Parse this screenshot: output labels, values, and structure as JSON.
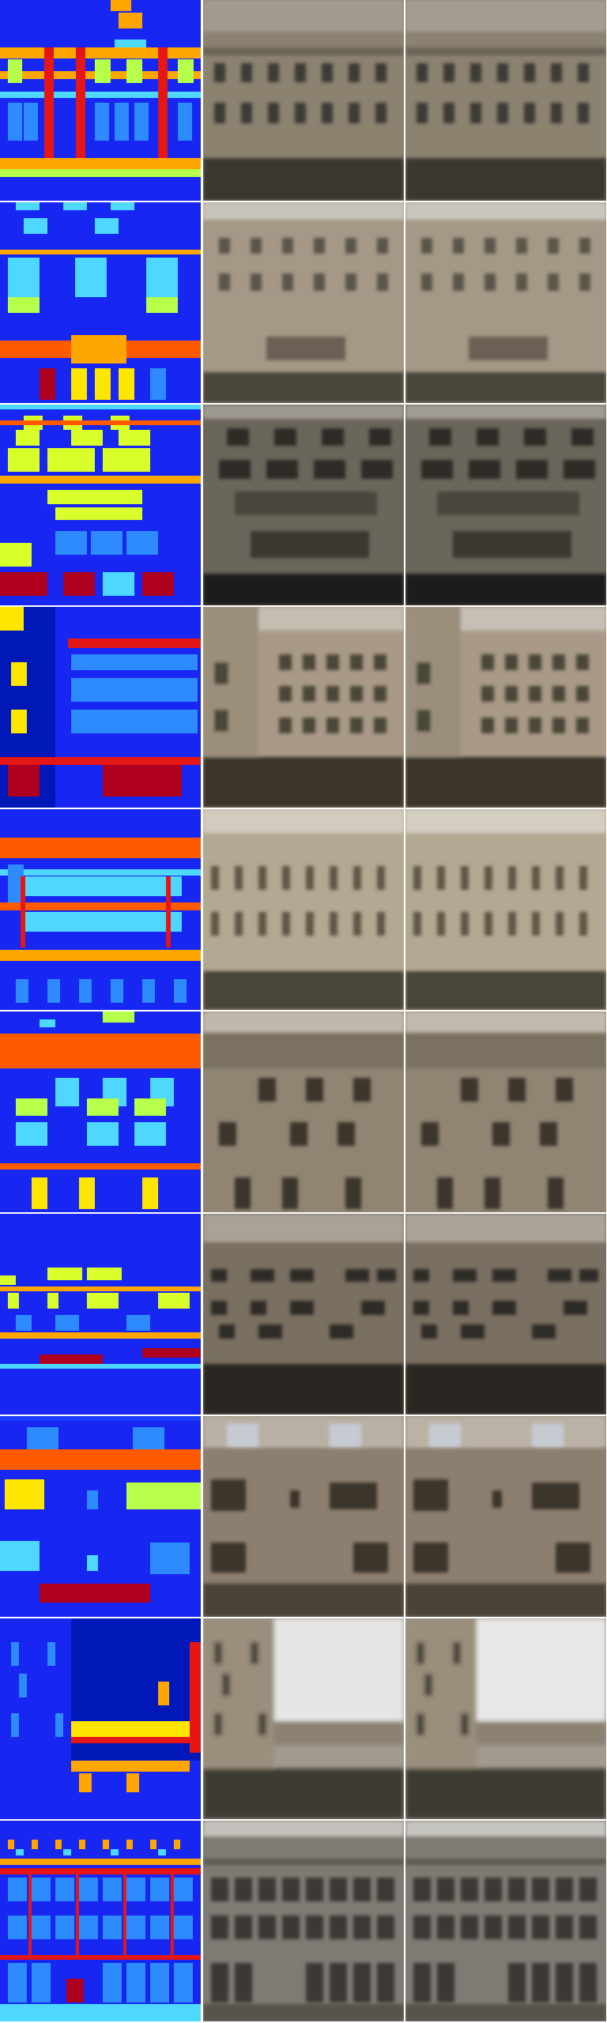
{
  "figure": {
    "description_columns": [
      "label-map",
      "generated-a",
      "generated-b"
    ],
    "rows": [
      {
        "id": "row-1",
        "label_palette": [
          "#1726f0",
          "#e51616",
          "#ffa600",
          "#b6ff4a",
          "#4fd8ff",
          "#2e8bff"
        ],
        "photo_tone": "#8b8270"
      },
      {
        "id": "row-2",
        "label_palette": [
          "#1726f0",
          "#ff5a00",
          "#ffa600",
          "#b6ff4a",
          "#4fd8ff",
          "#b00020"
        ],
        "photo_tone": "#a49986"
      },
      {
        "id": "row-3",
        "label_palette": [
          "#1726f0",
          "#ff5a00",
          "#d8ff2a",
          "#2e8bff",
          "#4fd8ff",
          "#b00020"
        ],
        "photo_tone": "#6b665c"
      },
      {
        "id": "row-4",
        "label_palette": [
          "#1726f0",
          "#e51616",
          "#ffe600",
          "#2e8bff",
          "#0018b8"
        ],
        "photo_tone": "#a89a86"
      },
      {
        "id": "row-5",
        "label_palette": [
          "#1726f0",
          "#ff5a00",
          "#4fd8ff",
          "#b6ff4a",
          "#e51616"
        ],
        "photo_tone": "#b3a892"
      },
      {
        "id": "row-6",
        "label_palette": [
          "#1726f0",
          "#ff5a00",
          "#b6ff4a",
          "#4fd8ff",
          "#ffe600"
        ],
        "photo_tone": "#8f8572"
      },
      {
        "id": "row-7",
        "label_palette": [
          "#1726f0",
          "#ffa600",
          "#d8ff2a",
          "#2e8bff",
          "#b00020"
        ],
        "photo_tone": "#7a7061"
      },
      {
        "id": "row-8",
        "label_palette": [
          "#1726f0",
          "#ff5a00",
          "#ffe600",
          "#2e8bff",
          "#b00020"
        ],
        "photo_tone": "#8d7f6f"
      },
      {
        "id": "row-9",
        "label_palette": [
          "#1726f0",
          "#0018b8",
          "#ffa600",
          "#ffe600",
          "#e51616"
        ],
        "photo_tone": "#a29a8f"
      },
      {
        "id": "row-10",
        "label_palette": [
          "#1726f0",
          "#e51616",
          "#ffa600",
          "#4fd8ff",
          "#2e8bff",
          "#b00020"
        ],
        "photo_tone": "#7e7b74"
      }
    ]
  }
}
